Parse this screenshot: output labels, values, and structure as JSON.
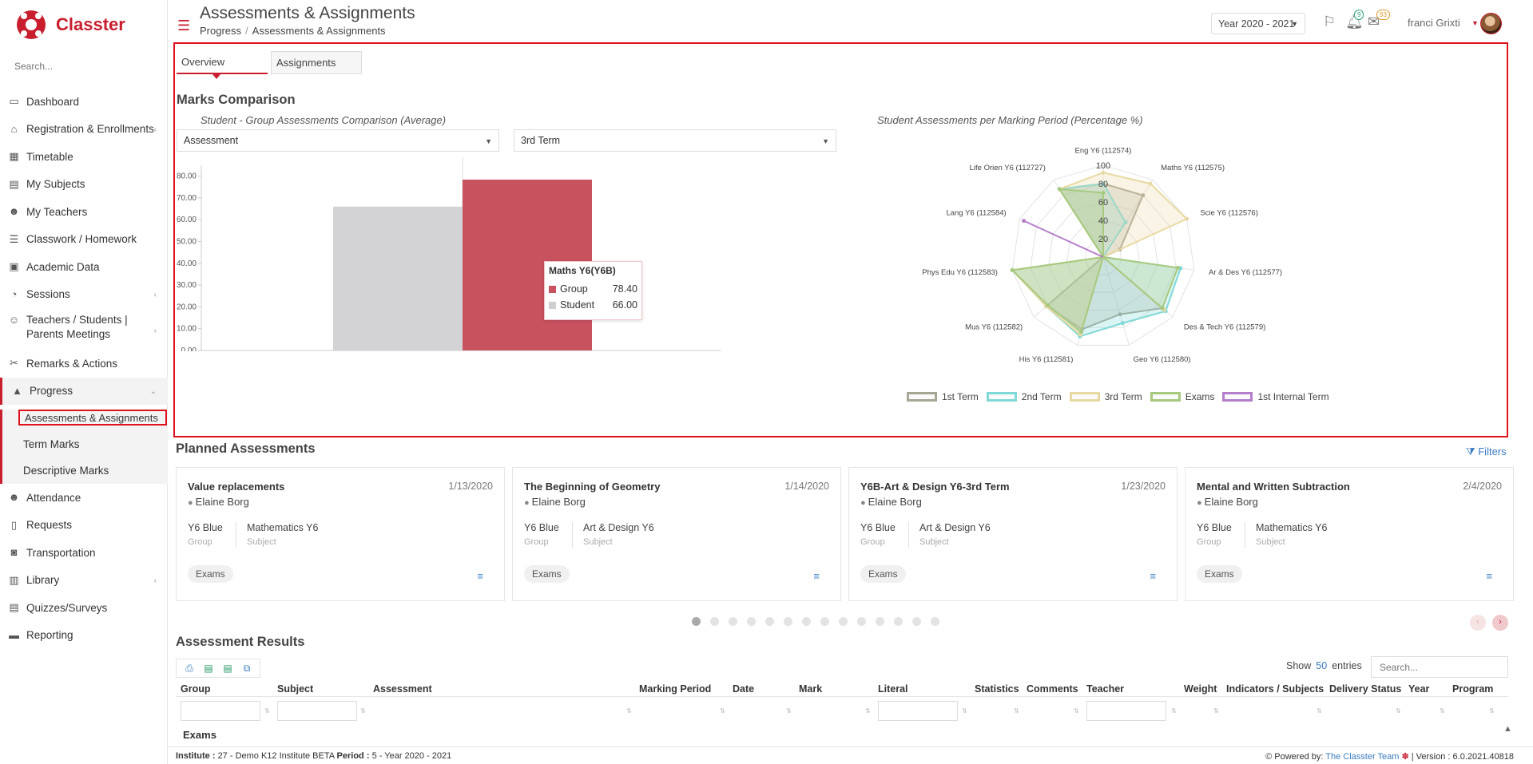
{
  "app": {
    "brand": "Classter"
  },
  "sidebar": {
    "search_placeholder": "Search...",
    "items": [
      {
        "label": "Dashboard"
      },
      {
        "label": "Registration & Enrollments"
      },
      {
        "label": "Timetable"
      },
      {
        "label": "My Subjects"
      },
      {
        "label": "My Teachers"
      },
      {
        "label": "Classwork / Homework"
      },
      {
        "label": "Academic Data"
      },
      {
        "label": "Sessions"
      },
      {
        "label": "Teachers / Students | Parents Meetings"
      },
      {
        "label": "Remarks & Actions"
      },
      {
        "label": "Progress"
      },
      {
        "label": "Attendance"
      },
      {
        "label": "Requests"
      },
      {
        "label": "Transportation"
      },
      {
        "label": "Library"
      },
      {
        "label": "Quizzes/Surveys"
      },
      {
        "label": "Reporting"
      }
    ],
    "progress_sub": [
      {
        "label": "Assessments & Assignments"
      },
      {
        "label": "Term Marks"
      },
      {
        "label": "Descriptive Marks"
      }
    ]
  },
  "header": {
    "title": "Assessments & Assignments",
    "breadcrumb": [
      "Progress",
      "Assessments & Assignments"
    ],
    "year": "Year 2020 - 2021",
    "notif_count": "9",
    "mail_count": "93",
    "user": "franci Grixti"
  },
  "overview": {
    "tabs": [
      "Overview",
      "Assignments"
    ],
    "section_title": "Marks Comparison",
    "bar_subtitle": "Student - Group Assessments Comparison (Average)",
    "radar_subtitle": "Student Assessments per Marking Period (Percentage %)",
    "assessment_select": "Assessment",
    "term_select": "3rd Term",
    "tooltip": {
      "title": "Maths Y6(Y6B)",
      "rows": [
        {
          "label": "Group",
          "value": "78.40"
        },
        {
          "label": "Student",
          "value": "66.00"
        }
      ]
    }
  },
  "chart_data": [
    {
      "type": "bar",
      "categories": [
        "Maths Y6(Y6B)"
      ],
      "series": [
        {
          "name": "Student",
          "values": [
            66.0
          ],
          "color": "#d3d3d6"
        },
        {
          "name": "Group",
          "values": [
            78.4
          ],
          "color": "#c9525f"
        }
      ],
      "ylim": [
        0,
        85
      ],
      "yticks": [
        "0.00",
        "10.00",
        "20.00",
        "30.00",
        "40.00",
        "50.00",
        "60.00",
        "70.00",
        "80.00"
      ]
    },
    {
      "type": "radar",
      "axes": [
        "Eng Y6 (112574)",
        "Maths Y6 (112575)",
        "Scie Y6 (112576)",
        "Ar & Des Y6 (112577)",
        "Des & Tech Y6 (112579)",
        "Geo Y6 (112580)",
        "His Y6 (112581)",
        "Mus Y6 (112582)",
        "Phys Edu Y6 (112583)",
        "Lang Y6 (112584)",
        "Life Orien Y6 (112727)"
      ],
      "rticks": [
        "20",
        "40",
        "60",
        "80",
        "100"
      ],
      "rmax": 100,
      "series": [
        {
          "name": "1st Term",
          "color": "#a8a695",
          "values": [
            80,
            80,
            20,
            0,
            85,
            65,
            82,
            82,
            0,
            0,
            88
          ]
        },
        {
          "name": "2nd Term",
          "color": "#7fd9d6",
          "values": [
            80,
            45,
            0,
            85,
            90,
            75,
            90,
            82,
            100,
            0,
            88
          ]
        },
        {
          "name": "3rd Term",
          "color": "#e8d9a3",
          "values": [
            92,
            95,
            100,
            0,
            88,
            0,
            88,
            82,
            100,
            0,
            88
          ]
        },
        {
          "name": "Exams",
          "color": "#a7c97e",
          "values": [
            70,
            0,
            0,
            82,
            85,
            0,
            85,
            80,
            100,
            0,
            88
          ]
        },
        {
          "name": "1st Internal Term",
          "color": "#b57ecb",
          "values": [
            0,
            0,
            0,
            0,
            0,
            0,
            0,
            0,
            0,
            95,
            0
          ]
        }
      ]
    }
  ],
  "planned": {
    "title": "Planned Assessments",
    "filters_label": "Filters",
    "group_label": "Group",
    "subject_label": "Subject",
    "cards": [
      {
        "title": "Value replacements",
        "date": "1/13/2020",
        "teacher": "Elaine Borg",
        "group": "Y6 Blue",
        "subject": "Mathematics Y6",
        "tag": "Exams"
      },
      {
        "title": "The Beginning of Geometry",
        "date": "1/14/2020",
        "teacher": "Elaine Borg",
        "group": "Y6 Blue",
        "subject": "Art & Design Y6",
        "tag": "Exams"
      },
      {
        "title": "Y6B-Art & Design Y6-3rd Term",
        "date": "1/23/2020",
        "teacher": "Elaine Borg",
        "group": "Y6 Blue",
        "subject": "Art & Design Y6",
        "tag": "Exams"
      },
      {
        "title": "Mental and Written Subtraction",
        "date": "2/4/2020",
        "teacher": "Elaine Borg",
        "group": "Y6 Blue",
        "subject": "Mathematics Y6",
        "tag": "Exams"
      }
    ],
    "page_count": 14,
    "current_page": 1
  },
  "results": {
    "title": "Assessment Results",
    "show_label": "Show",
    "entries_count": "50",
    "entries_label": "entries",
    "search_placeholder": "Search...",
    "columns": [
      "Group",
      "Subject",
      "Assessment",
      "Marking Period",
      "Date",
      "Mark",
      "Literal",
      "Statistics",
      "Comments",
      "Teacher",
      "Weight",
      "Indicators / Subjects",
      "Delivery Status",
      "Year",
      "Program"
    ],
    "group_row": "Exams"
  },
  "footer": {
    "institute_label": "Institute :",
    "institute_value": "27 - Demo K12 Institute BETA",
    "period_label": "Period :",
    "period_value": "5 - Year 2020 - 2021",
    "powered_label": "Powered by:",
    "powered_link": "The Classter Team",
    "version_label": "Version :",
    "version_value": "6.0.2021.40818"
  }
}
